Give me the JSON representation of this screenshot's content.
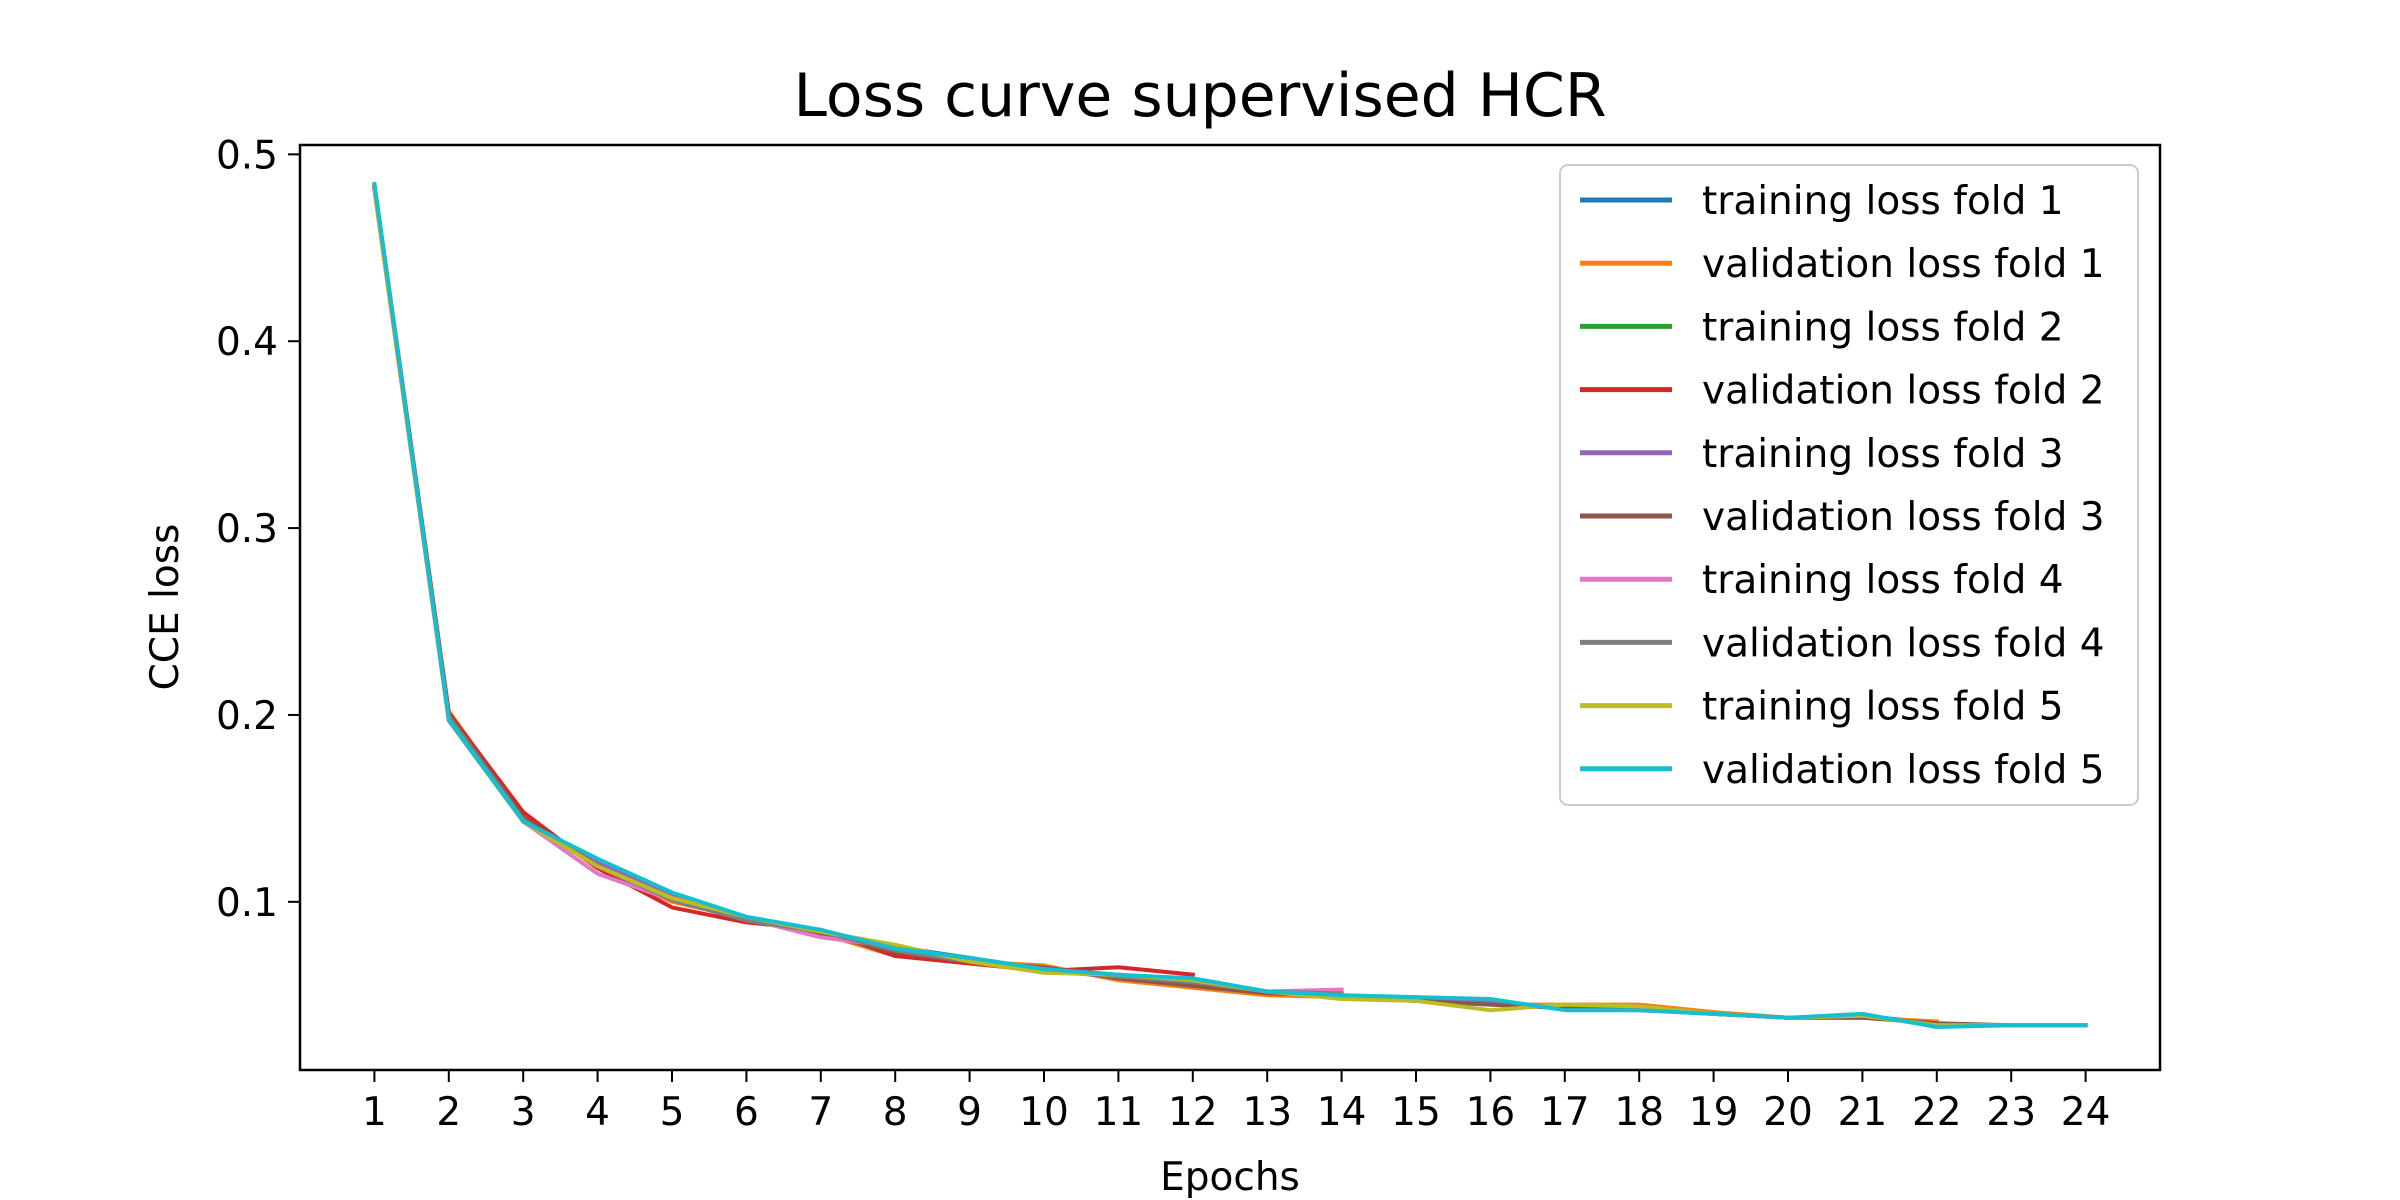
{
  "chart_data": {
    "type": "line",
    "title": "Loss curve supervised HCR",
    "xlabel": "Epochs",
    "ylabel": "CCE loss",
    "xlim": [
      0,
      25
    ],
    "ylim": [
      0.01,
      0.505
    ],
    "xticks": [
      1,
      2,
      3,
      4,
      5,
      6,
      7,
      8,
      9,
      10,
      11,
      12,
      13,
      14,
      15,
      16,
      17,
      18,
      19,
      20,
      21,
      22,
      23,
      24
    ],
    "yticks": [
      0.1,
      0.2,
      0.3,
      0.4,
      0.5
    ],
    "ytick_labels": [
      "0.1",
      "0.2",
      "0.3",
      "0.4",
      "0.5"
    ],
    "grid": false,
    "legend_position": "top-right",
    "series": [
      {
        "name": "training loss fold 1",
        "color": "#1f77b4",
        "values": [
          0.482,
          0.198,
          0.143,
          0.121,
          0.103,
          0.091,
          0.084,
          0.076,
          0.07,
          0.064,
          0.061,
          0.058,
          0.052,
          0.05,
          0.048,
          0.046,
          0.044,
          0.043,
          0.04,
          0.038,
          0.039,
          0.035
        ]
      },
      {
        "name": "validation loss fold 1",
        "color": "#ff7f0e",
        "values": [
          0.483,
          0.202,
          0.146,
          0.118,
          0.1,
          0.091,
          0.083,
          0.071,
          0.068,
          0.066,
          0.058,
          0.054,
          0.05,
          0.049,
          0.047,
          0.045,
          0.045,
          0.045,
          0.041,
          0.038,
          0.038,
          0.036
        ]
      },
      {
        "name": "training loss fold 2",
        "color": "#2ca02c",
        "values": [
          0.481,
          0.199,
          0.143,
          0.12,
          0.102,
          0.091,
          0.084,
          0.075,
          0.069,
          0.063,
          0.061,
          0.058
        ]
      },
      {
        "name": "validation loss fold 2",
        "color": "#d62728",
        "values": [
          0.484,
          0.201,
          0.148,
          0.118,
          0.097,
          0.089,
          0.085,
          0.071,
          0.067,
          0.063,
          0.065,
          0.061
        ]
      },
      {
        "name": "training loss fold 3",
        "color": "#9467bd",
        "values": [
          0.481,
          0.198,
          0.143,
          0.121,
          0.103,
          0.091,
          0.084,
          0.076,
          0.069,
          0.063,
          0.06,
          0.058,
          0.052,
          0.049,
          0.047,
          0.046,
          0.043,
          0.042,
          0.04,
          0.038,
          0.039,
          0.034,
          0.034,
          0.034
        ]
      },
      {
        "name": "validation loss fold 3",
        "color": "#8c564b",
        "values": [
          0.482,
          0.2,
          0.145,
          0.119,
          0.101,
          0.09,
          0.083,
          0.073,
          0.068,
          0.065,
          0.059,
          0.055,
          0.051,
          0.05,
          0.047,
          0.045,
          0.043,
          0.043,
          0.04,
          0.038,
          0.038,
          0.035,
          0.034,
          0.034
        ]
      },
      {
        "name": "training loss fold 4",
        "color": "#e377c2",
        "values": [
          0.482,
          0.198,
          0.143,
          0.115,
          0.101,
          0.091,
          0.081,
          0.076,
          0.069,
          0.063,
          0.061,
          0.058,
          0.052,
          0.053
        ]
      },
      {
        "name": "validation loss fold 4",
        "color": "#7f7f7f",
        "values": [
          0.483,
          0.199,
          0.144,
          0.119,
          0.101,
          0.09,
          0.084,
          0.074,
          0.068,
          0.064,
          0.06,
          0.057,
          0.052,
          0.051
        ]
      },
      {
        "name": "training loss fold 5",
        "color": "#bcbd22",
        "values": [
          0.481,
          0.197,
          0.143,
          0.119,
          0.102,
          0.092,
          0.084,
          0.077,
          0.068,
          0.062,
          0.061,
          0.058,
          0.052,
          0.048,
          0.047,
          0.042,
          0.045,
          0.044,
          0.04,
          0.038,
          0.039,
          0.034,
          0.034,
          0.034
        ]
      },
      {
        "name": "validation loss fold 5",
        "color": "#17becf",
        "values": [
          0.484,
          0.197,
          0.143,
          0.123,
          0.105,
          0.092,
          0.085,
          0.075,
          0.07,
          0.064,
          0.061,
          0.059,
          0.052,
          0.05,
          0.049,
          0.048,
          0.042,
          0.042,
          0.04,
          0.038,
          0.04,
          0.033,
          0.034,
          0.034
        ]
      }
    ]
  }
}
